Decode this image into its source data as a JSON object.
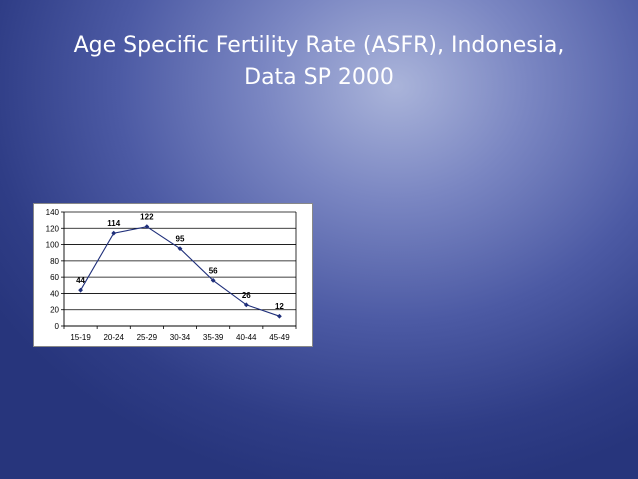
{
  "slide": {
    "title_line1": "Age Specific Fertility Rate (ASFR), Indonesia,",
    "title_line2": "Data SP 2000"
  },
  "colors": {
    "series_line": "#1f2f7a",
    "axis": "#000000",
    "gridline": "#000000"
  },
  "chart_data": {
    "type": "line",
    "title": "",
    "xlabel": "",
    "ylabel": "",
    "categories": [
      "15-19",
      "20-24",
      "25-29",
      "30-34",
      "35-39",
      "40-44",
      "45-49"
    ],
    "values": [
      44,
      114,
      122,
      95,
      56,
      26,
      12
    ],
    "data_labels": [
      "44",
      "114",
      "122",
      "95",
      "56",
      "26",
      "12"
    ],
    "ylim": [
      0,
      140
    ],
    "yticks": [
      0,
      20,
      40,
      60,
      80,
      100,
      120,
      140
    ],
    "ytick_labels": [
      "0",
      "20",
      "40",
      "60",
      "80",
      "100",
      "120",
      "140"
    ],
    "grid": true,
    "legend": "none",
    "marker": "diamond"
  }
}
